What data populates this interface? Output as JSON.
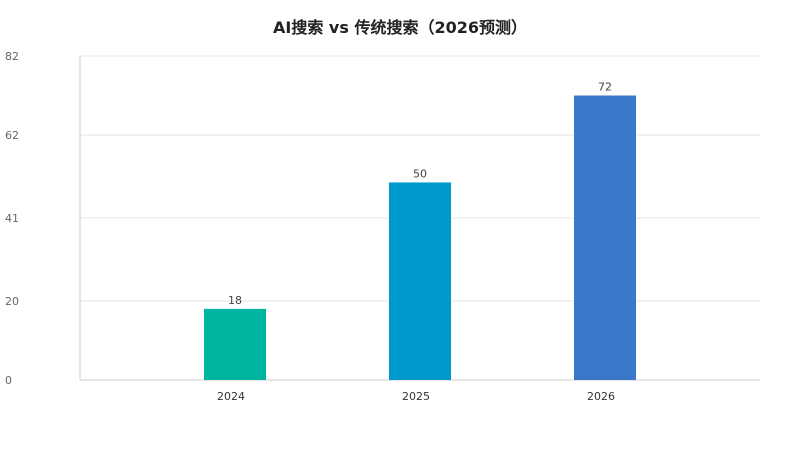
{
  "chart_data": {
    "type": "bar",
    "title": "AI搜索 vs 传统搜索（2026预测）",
    "categories": [
      "2024",
      "2025",
      "2026"
    ],
    "values": [
      18,
      50,
      72
    ],
    "colors": [
      "#00b5a0",
      "#0099cc",
      "#3a78c9"
    ],
    "yticks": [
      0,
      20,
      41,
      62,
      82
    ],
    "ylim": [
      0,
      82
    ],
    "xlabel": "",
    "ylabel": "",
    "grid": true,
    "legend": "none"
  }
}
